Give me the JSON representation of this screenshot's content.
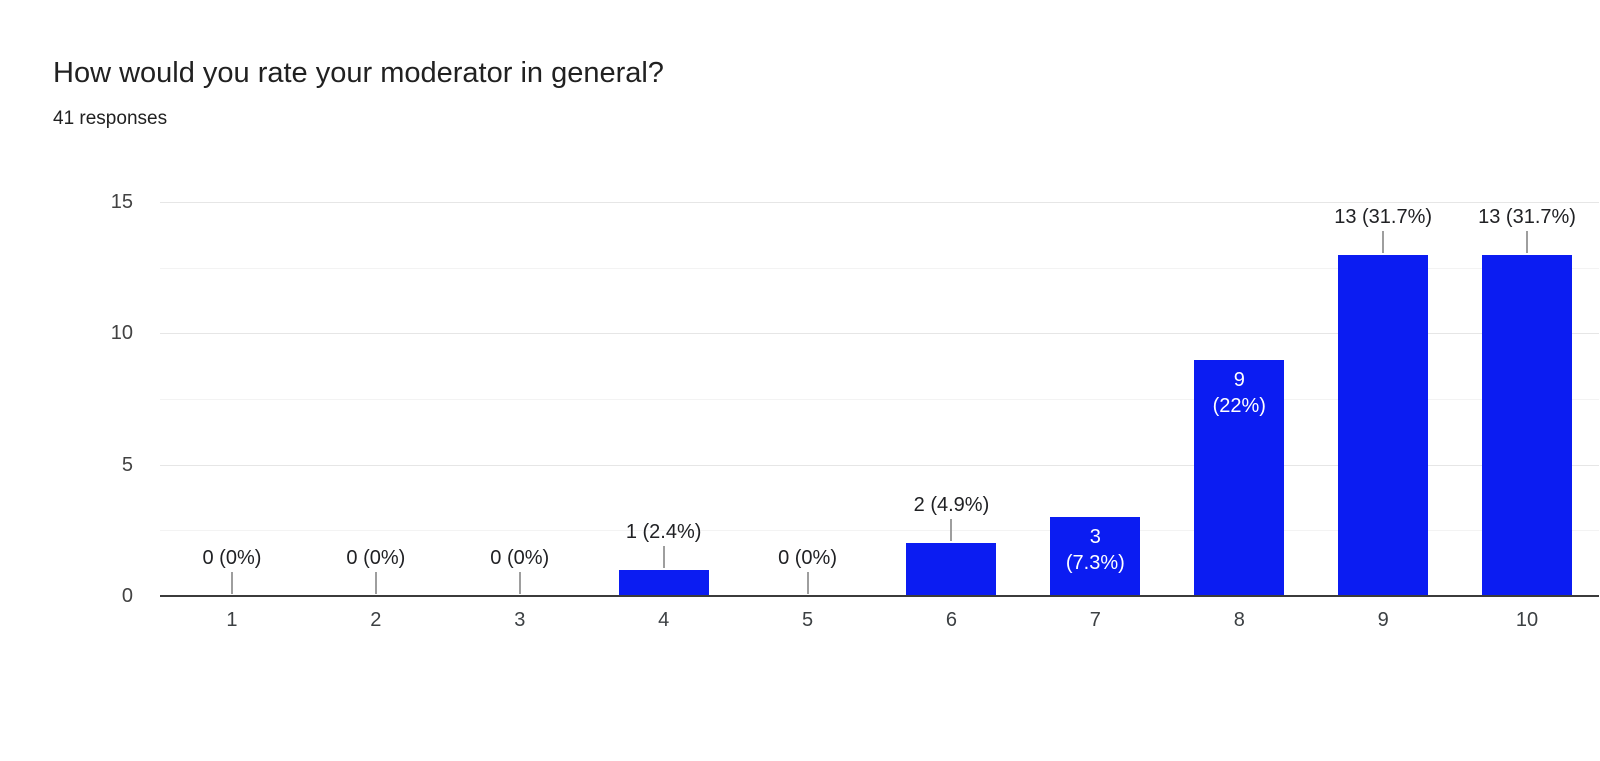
{
  "header": {
    "title": "How would you rate your moderator in general?",
    "subtitle": "41 responses"
  },
  "colors": {
    "bar": "#0b1cf2",
    "major_gridline": "#e6e6e6",
    "minor_gridline": "#f3f3f3",
    "baseline": "#3b3b3b",
    "stem": "#9e9e9e",
    "outside_label_text": "#202124",
    "inside_label_text": "#ffffff"
  },
  "chart_data": {
    "type": "bar",
    "title": "How would you rate your moderator in general?",
    "subtitle": "41 responses",
    "xlabel": "",
    "ylabel": "",
    "categories": [
      "1",
      "2",
      "3",
      "4",
      "5",
      "6",
      "7",
      "8",
      "9",
      "10"
    ],
    "values": [
      0,
      0,
      0,
      1,
      0,
      2,
      3,
      9,
      13,
      13
    ],
    "percent_labels": [
      "0%",
      "0%",
      "0%",
      "2.4%",
      "0%",
      "4.9%",
      "7.3%",
      "22%",
      "31.7%",
      "31.7%"
    ],
    "point_labels": [
      "0 (0%)",
      "0 (0%)",
      "0 (0%)",
      "1 (2.4%)",
      "0 (0%)",
      "2 (4.9%)",
      "3 (7.3%)",
      "9 (22%)",
      "13 (31.7%)",
      "13 (31.7%)"
    ],
    "label_placement": [
      "outside",
      "outside",
      "outside",
      "outside",
      "outside",
      "outside",
      "inside",
      "inside",
      "outside",
      "outside"
    ],
    "ylim": [
      0,
      15
    ],
    "yticks": [
      0,
      5,
      10,
      15
    ],
    "minor_gridlines": [
      2.5,
      7.5,
      12.5
    ],
    "grid": "horizontal-only",
    "legend": "none",
    "total_responses": 41
  }
}
